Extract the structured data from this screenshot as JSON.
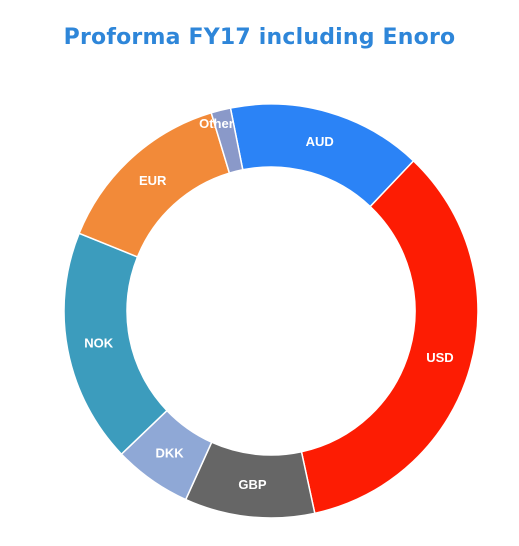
{
  "chart_data": {
    "type": "pie",
    "title": "Proforma FY17 including Enoro",
    "donut": true,
    "categories": [
      "AUD",
      "USD",
      "GBP",
      "DKK",
      "NOK",
      "EUR",
      "Other"
    ],
    "values": [
      15,
      34,
      10,
      6,
      18,
      14,
      1.5
    ],
    "unit": "share of total",
    "colors": [
      "#2b83f6",
      "#fd1c03",
      "#666666",
      "#8fa8d6",
      "#3c9cbd",
      "#f28a39",
      "#8a99c9"
    ]
  }
}
